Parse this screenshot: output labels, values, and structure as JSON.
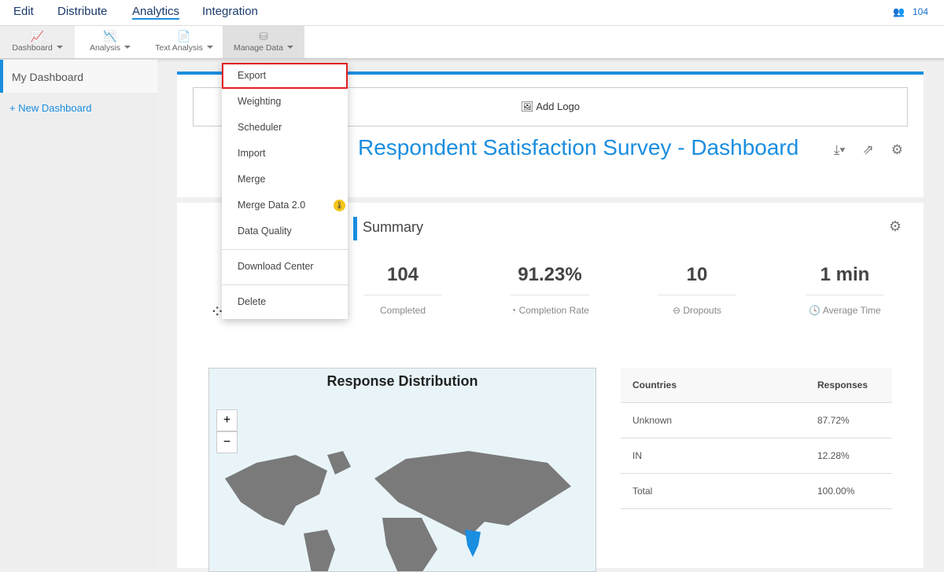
{
  "topnav": {
    "items": [
      "Edit",
      "Distribute",
      "Analytics",
      "Integration"
    ],
    "user_count": "104"
  },
  "toolbar": {
    "items": [
      "Dashboard",
      "Analysis",
      "Text Analysis",
      "Manage Data"
    ]
  },
  "sidebar": {
    "my_dashboard": "My Dashboard",
    "new_dashboard": "+ New Dashboard"
  },
  "header": {
    "add_logo": "Add Logo",
    "title": "Respondent Satisfaction Survey  - Dashboard"
  },
  "summary": {
    "title": "Summary",
    "stats": [
      {
        "value": "104",
        "label": "Completed"
      },
      {
        "value": "91.23%",
        "label": "Completion Rate"
      },
      {
        "value": "10",
        "label": "Dropouts"
      },
      {
        "value": "1 min",
        "label": "Average Time"
      }
    ]
  },
  "map": {
    "title": "Response Distribution",
    "zoom_in": "+",
    "zoom_out": "−"
  },
  "table": {
    "headers": [
      "Countries",
      "Responses"
    ],
    "rows": [
      [
        "Unknown",
        "87.72%"
      ],
      [
        "IN",
        "12.28%"
      ],
      [
        "Total",
        "100.00%"
      ]
    ]
  },
  "menu": {
    "items": [
      "Export",
      "Weighting",
      "Scheduler",
      "Import",
      "Merge",
      "Merge Data 2.0",
      "Data Quality",
      "Download Center",
      "Delete"
    ]
  }
}
